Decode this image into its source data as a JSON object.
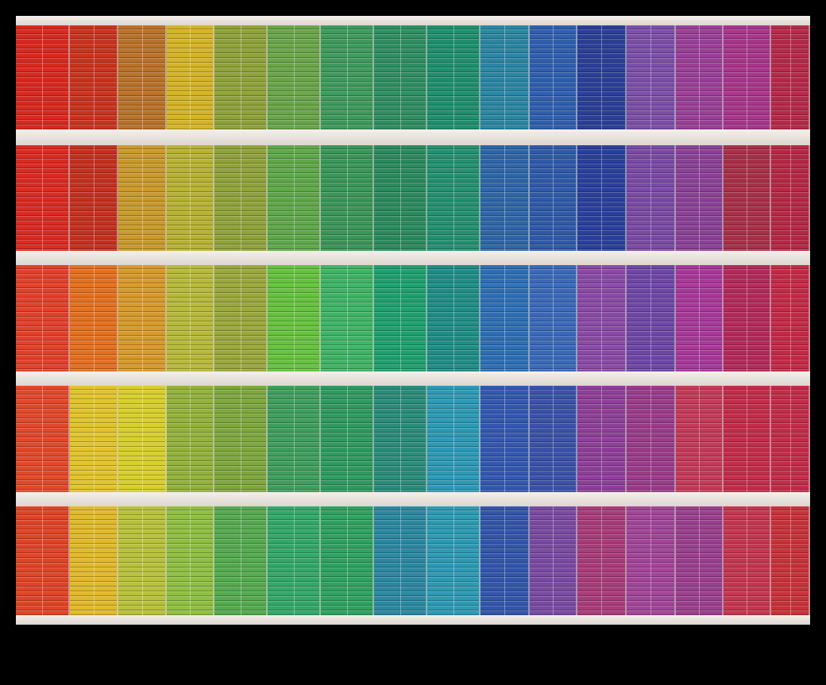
{
  "photo": {
    "description_colors": {
      "background": "#000000",
      "slab": "#ebe5df"
    },
    "rows": [
      {
        "panels": [
          "#d9281f",
          "#c9331e",
          "#b9722a",
          "#d4b427",
          "#8fa23a",
          "#6aa54a",
          "#3e9a5d",
          "#2f8e62",
          "#1f8f6d",
          "#2b86a3",
          "#2f5fae",
          "#2b3f97",
          "#7c4fa8",
          "#9a3f98",
          "#a8368a",
          "#b52a49"
        ]
      },
      {
        "panels": [
          "#da2a22",
          "#c4301f",
          "#c99a2c",
          "#b7b233",
          "#90a23b",
          "#5fa84a",
          "#3a9659",
          "#2b8a5e",
          "#249070",
          "#2e66a6",
          "#2f5aa8",
          "#2a409b",
          "#7a4aa5",
          "#8a4196",
          "#a83048",
          "#b52845"
        ]
      },
      {
        "panels": [
          "#e3402a",
          "#e4701f",
          "#d79a2b",
          "#b7b93a",
          "#9aa83c",
          "#66c23f",
          "#3fb466",
          "#1fa06f",
          "#1f8d86",
          "#2e6fb4",
          "#3a6ab8",
          "#8a4aa6",
          "#6f47a6",
          "#a8389a",
          "#b32a5a",
          "#c42a46"
        ]
      },
      {
        "panels": [
          "#e2482a",
          "#e1c42b",
          "#d8cf2b",
          "#93b23b",
          "#7ea73e",
          "#3f9e5e",
          "#2f9a60",
          "#2a8c7a",
          "#2d9ab5",
          "#3458b0",
          "#3b52a8",
          "#8e3f99",
          "#9a3c8a",
          "#c43a59",
          "#c32c4a",
          "#c22c48"
        ]
      },
      {
        "panels": [
          "#df4427",
          "#e1b92a",
          "#b8c23a",
          "#8fbf42",
          "#55aa4f",
          "#33a868",
          "#2fa160",
          "#2b88a0",
          "#2d9ab3",
          "#3356aa",
          "#7a4aa2",
          "#a83c7a",
          "#a24598",
          "#9a3f8e",
          "#c53650",
          "#c8323a"
        ]
      }
    ]
  }
}
